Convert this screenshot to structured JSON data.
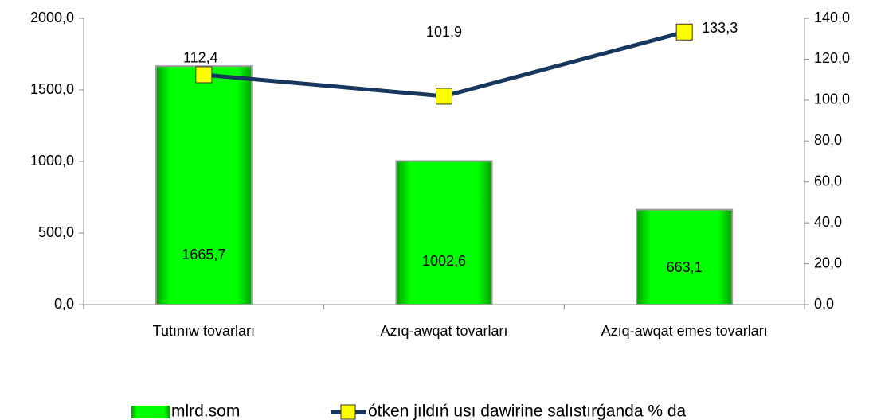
{
  "chart_data": {
    "type": "bar",
    "categories": [
      "Tutınıw tovarları",
      "Azıq-awqat tovarları",
      "Azıq-awqat emes tovarları"
    ],
    "series": [
      {
        "name": "mlrd.som",
        "color": "#00ff00",
        "values": [
          1665.7,
          1002.6,
          663.1
        ],
        "value_labels": [
          "1665,7",
          "1002,6",
          "663,1"
        ]
      },
      {
        "name": "ótken jıldıń usı dawirine salıstırǵanda  % da",
        "color": "#17375e",
        "marker_color": "#ffff00",
        "type": "line",
        "axis": "y2",
        "values": [
          112.4,
          101.9,
          133.3
        ],
        "value_labels": [
          "112,4",
          "101,9",
          "133,3"
        ]
      }
    ],
    "ylim": [
      0,
      2000
    ],
    "yticks": [
      {
        "value": 0,
        "label": "0,0"
      },
      {
        "value": 500,
        "label": "500,0"
      },
      {
        "value": 1000,
        "label": "1000,0"
      },
      {
        "value": 1500,
        "label": "1500,0"
      },
      {
        "value": 2000,
        "label": "2000,0"
      }
    ],
    "y2lim": [
      0,
      140
    ],
    "y2ticks": [
      {
        "value": 0,
        "label": "0,0"
      },
      {
        "value": 20,
        "label": "20,0"
      },
      {
        "value": 40,
        "label": "40,0"
      },
      {
        "value": 60,
        "label": "60,0"
      },
      {
        "value": 80,
        "label": "80,0"
      },
      {
        "value": 100,
        "label": "100,0"
      },
      {
        "value": 120,
        "label": "120,0"
      },
      {
        "value": 140,
        "label": "140,0"
      }
    ]
  }
}
